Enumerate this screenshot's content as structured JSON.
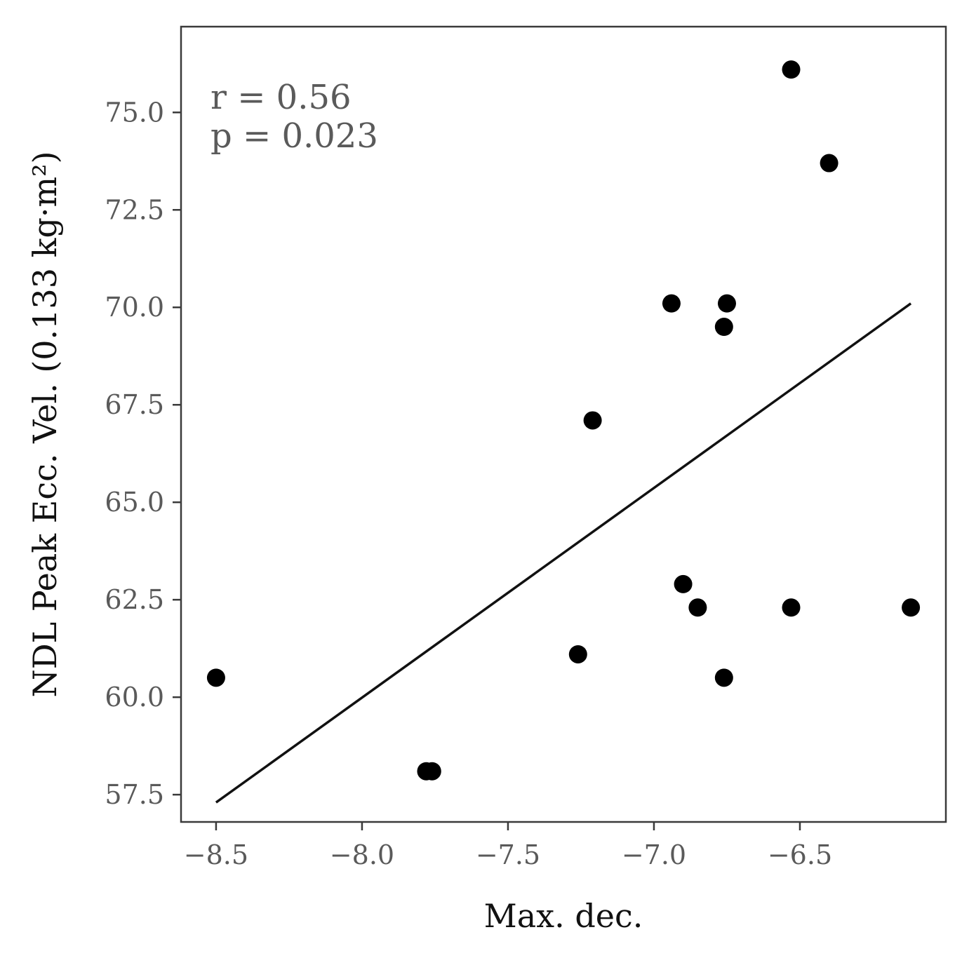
{
  "chart_data": {
    "type": "scatter",
    "title": "",
    "xlabel": "Max. dec.",
    "ylabel": "NDL Peak Ecc. Vel. (0.133 kg·m²)",
    "xlim": [
      -8.62,
      -6.0
    ],
    "ylim": [
      56.8,
      77.2
    ],
    "grid": false,
    "legend": "none",
    "x_ticks": [
      -8.5,
      -8.0,
      -7.5,
      -7.0,
      -6.5
    ],
    "x_tick_labels": [
      "−8.5",
      "−8.0",
      "−7.5",
      "−7.0",
      "−6.5"
    ],
    "y_ticks": [
      57.5,
      60.0,
      62.5,
      65.0,
      67.5,
      70.0,
      72.5,
      75.0
    ],
    "y_tick_labels": [
      "57.5",
      "60.0",
      "62.5",
      "65.0",
      "67.5",
      "70.0",
      "72.5",
      "75.0"
    ],
    "annotations": [
      "r = 0.56",
      "p = 0.023"
    ],
    "points": [
      {
        "x": -8.5,
        "y": 60.5
      },
      {
        "x": -7.78,
        "y": 58.1
      },
      {
        "x": -7.76,
        "y": 58.1
      },
      {
        "x": -7.26,
        "y": 61.1
      },
      {
        "x": -7.21,
        "y": 67.1
      },
      {
        "x": -6.94,
        "y": 70.1
      },
      {
        "x": -6.9,
        "y": 62.9
      },
      {
        "x": -6.85,
        "y": 62.3
      },
      {
        "x": -6.76,
        "y": 69.5
      },
      {
        "x": -6.75,
        "y": 70.1
      },
      {
        "x": -6.76,
        "y": 60.5
      },
      {
        "x": -6.53,
        "y": 76.1
      },
      {
        "x": -6.53,
        "y": 62.3
      },
      {
        "x": -6.4,
        "y": 73.7
      },
      {
        "x": -6.12,
        "y": 62.3
      }
    ],
    "fit_line": {
      "x": [
        -8.5,
        -6.12
      ],
      "y": [
        57.3,
        70.1
      ]
    },
    "colors": {
      "points": "#000000",
      "line": "#111111",
      "frame": "#3a3a3a",
      "ticks": "#3a3a3a"
    }
  }
}
